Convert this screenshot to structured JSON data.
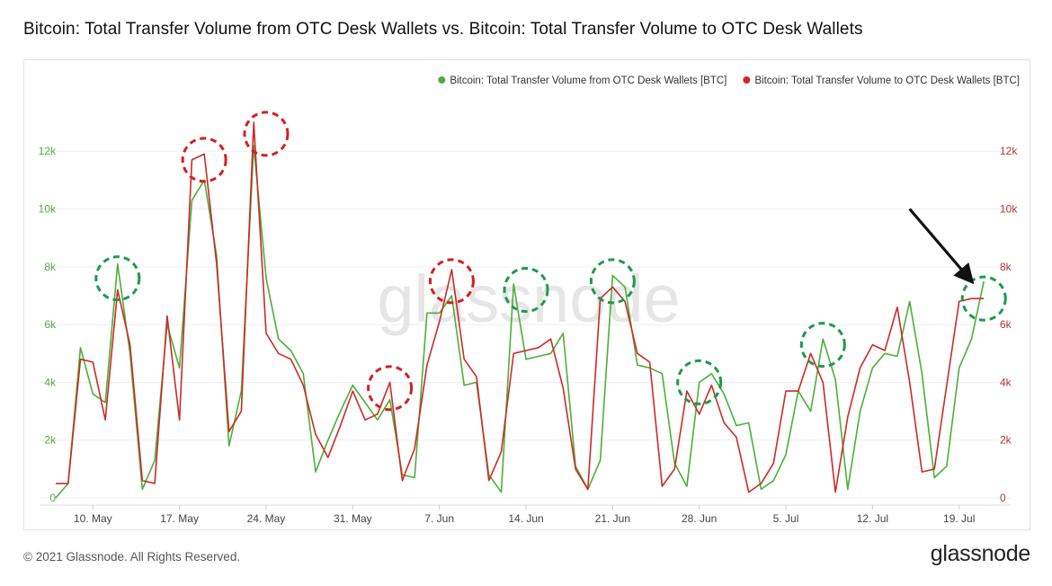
{
  "title": "Bitcoin: Total Transfer Volume from OTC Desk Wallets vs. Bitcoin: Total Transfer Volume to OTC Desk Wallets",
  "footer": {
    "copyright": "© 2021 Glassnode. All Rights Reserved.",
    "logo": "glassnode"
  },
  "watermark": "glassnode",
  "chart_data": {
    "type": "line",
    "xlabel": "",
    "ylabel_left": "",
    "ylabel_right": "",
    "x_range": [
      "2021-05-07",
      "2021-07-22"
    ],
    "ylim_left": [
      0,
      13500
    ],
    "ylim_right": [
      0,
      13500
    ],
    "x_tick_labels": [
      "10. May",
      "17. May",
      "24. May",
      "31. May",
      "7. Jun",
      "14. Jun",
      "21. Jun",
      "28. Jun",
      "5. Jul",
      "12. Jul",
      "19. Jul"
    ],
    "x_tick_dates": [
      "2021-05-10",
      "2021-05-17",
      "2021-05-24",
      "2021-05-31",
      "2021-06-07",
      "2021-06-14",
      "2021-06-21",
      "2021-06-28",
      "2021-07-05",
      "2021-07-12",
      "2021-07-19"
    ],
    "y_ticks_left": [
      "0",
      "2k",
      "4k",
      "6k",
      "8k",
      "10k",
      "12k"
    ],
    "y_ticks_right": [
      "0",
      "2k",
      "4k",
      "6k",
      "8k",
      "10k",
      "12k"
    ],
    "y_tick_values": [
      0,
      2000,
      4000,
      6000,
      8000,
      10000,
      12000
    ],
    "legend_position": "top-right",
    "grid": "horizontal",
    "series": [
      {
        "name": "Bitcoin: Total Transfer Volume from OTC Desk Wallets [BTC]",
        "color": "#4caf3a",
        "axis": "left",
        "x": [
          "2021-05-07",
          "2021-05-08",
          "2021-05-09",
          "2021-05-10",
          "2021-05-11",
          "2021-05-12",
          "2021-05-13",
          "2021-05-14",
          "2021-05-15",
          "2021-05-16",
          "2021-05-17",
          "2021-05-18",
          "2021-05-19",
          "2021-05-20",
          "2021-05-21",
          "2021-05-22",
          "2021-05-23",
          "2021-05-24",
          "2021-05-25",
          "2021-05-26",
          "2021-05-27",
          "2021-05-28",
          "2021-05-29",
          "2021-05-30",
          "2021-05-31",
          "2021-06-01",
          "2021-06-02",
          "2021-06-03",
          "2021-06-04",
          "2021-06-05",
          "2021-06-06",
          "2021-06-07",
          "2021-06-08",
          "2021-06-09",
          "2021-06-10",
          "2021-06-11",
          "2021-06-12",
          "2021-06-13",
          "2021-06-14",
          "2021-06-15",
          "2021-06-16",
          "2021-06-17",
          "2021-06-18",
          "2021-06-19",
          "2021-06-20",
          "2021-06-21",
          "2021-06-22",
          "2021-06-23",
          "2021-06-24",
          "2021-06-25",
          "2021-06-26",
          "2021-06-27",
          "2021-06-28",
          "2021-06-29",
          "2021-06-30",
          "2021-07-01",
          "2021-07-02",
          "2021-07-03",
          "2021-07-04",
          "2021-07-05",
          "2021-07-06",
          "2021-07-07",
          "2021-07-08",
          "2021-07-09",
          "2021-07-10",
          "2021-07-11",
          "2021-07-12",
          "2021-07-13",
          "2021-07-14",
          "2021-07-15",
          "2021-07-16",
          "2021-07-17",
          "2021-07-18",
          "2021-07-19",
          "2021-07-20",
          "2021-07-21"
        ],
        "values": [
          0,
          500,
          5200,
          3600,
          3300,
          8100,
          5000,
          300,
          1300,
          6000,
          4500,
          10300,
          11000,
          8400,
          1800,
          3700,
          12200,
          7600,
          5500,
          5100,
          4300,
          900,
          2000,
          3000,
          3900,
          3300,
          2700,
          3400,
          800,
          700,
          6400,
          6400,
          7000,
          3900,
          4000,
          800,
          200,
          7400,
          4800,
          4900,
          5000,
          5700,
          1100,
          300,
          1300,
          7700,
          7300,
          4600,
          4500,
          4300,
          1200,
          400,
          4000,
          4300,
          3600,
          2500,
          2600,
          300,
          600,
          1500,
          3700,
          3000,
          5500,
          4100,
          300,
          3000,
          4500,
          5000,
          4900,
          6800,
          4300,
          700,
          1100,
          4500,
          5500,
          7500
        ]
      },
      {
        "name": "Bitcoin: Total Transfer Volume to OTC Desk Wallets [BTC]",
        "color": "#cc2a28",
        "axis": "right",
        "x": [
          "2021-05-07",
          "2021-05-08",
          "2021-05-09",
          "2021-05-10",
          "2021-05-11",
          "2021-05-12",
          "2021-05-13",
          "2021-05-14",
          "2021-05-15",
          "2021-05-16",
          "2021-05-17",
          "2021-05-18",
          "2021-05-19",
          "2021-05-20",
          "2021-05-21",
          "2021-05-22",
          "2021-05-23",
          "2021-05-24",
          "2021-05-25",
          "2021-05-26",
          "2021-05-27",
          "2021-05-28",
          "2021-05-29",
          "2021-05-30",
          "2021-05-31",
          "2021-06-01",
          "2021-06-02",
          "2021-06-03",
          "2021-06-04",
          "2021-06-05",
          "2021-06-06",
          "2021-06-07",
          "2021-06-08",
          "2021-06-09",
          "2021-06-10",
          "2021-06-11",
          "2021-06-12",
          "2021-06-13",
          "2021-06-14",
          "2021-06-15",
          "2021-06-16",
          "2021-06-17",
          "2021-06-18",
          "2021-06-19",
          "2021-06-20",
          "2021-06-21",
          "2021-06-22",
          "2021-06-23",
          "2021-06-24",
          "2021-06-25",
          "2021-06-26",
          "2021-06-27",
          "2021-06-28",
          "2021-06-29",
          "2021-06-30",
          "2021-07-01",
          "2021-07-02",
          "2021-07-03",
          "2021-07-04",
          "2021-07-05",
          "2021-07-06",
          "2021-07-07",
          "2021-07-08",
          "2021-07-09",
          "2021-07-10",
          "2021-07-11",
          "2021-07-12",
          "2021-07-13",
          "2021-07-14",
          "2021-07-15",
          "2021-07-16",
          "2021-07-17",
          "2021-07-18",
          "2021-07-19",
          "2021-07-20",
          "2021-07-21"
        ],
        "values": [
          500,
          500,
          4800,
          4700,
          2700,
          7200,
          5300,
          600,
          500,
          6300,
          2700,
          11700,
          11900,
          8100,
          2300,
          3000,
          13000,
          5700,
          5000,
          4800,
          3900,
          2200,
          1400,
          2500,
          3700,
          2700,
          2900,
          4000,
          600,
          1700,
          4600,
          6100,
          7900,
          4800,
          4200,
          600,
          1600,
          5000,
          5100,
          5200,
          5500,
          3800,
          1000,
          300,
          6900,
          7300,
          6800,
          5000,
          4700,
          400,
          1000,
          3700,
          2900,
          3900,
          2600,
          2100,
          200,
          500,
          1200,
          3700,
          3700,
          5000,
          4000,
          200,
          2800,
          4500,
          5300,
          5100,
          6600,
          4000,
          900,
          1000,
          3900,
          6800,
          6900,
          6900
        ]
      }
    ],
    "annotations": [
      {
        "kind": "dashed-circle",
        "color": "#1e9a4c",
        "x": "2021-05-12",
        "y": 7600
      },
      {
        "kind": "dashed-circle",
        "color": "#d42020",
        "x": "2021-05-19",
        "y": 11700
      },
      {
        "kind": "dashed-circle",
        "color": "#d42020",
        "x": "2021-05-24",
        "y": 12600
      },
      {
        "kind": "dashed-circle",
        "color": "#d42020",
        "x": "2021-06-03",
        "y": 3800
      },
      {
        "kind": "dashed-circle",
        "color": "#d42020",
        "x": "2021-06-08",
        "y": 7500
      },
      {
        "kind": "dashed-circle",
        "color": "#1e9a4c",
        "x": "2021-06-14",
        "y": 7200
      },
      {
        "kind": "dashed-circle",
        "color": "#1e9a4c",
        "x": "2021-06-21",
        "y": 7500
      },
      {
        "kind": "dashed-circle",
        "color": "#1e9a4c",
        "x": "2021-06-28",
        "y": 4000
      },
      {
        "kind": "dashed-circle",
        "color": "#1e9a4c",
        "x": "2021-07-08",
        "y": 5300
      },
      {
        "kind": "dashed-circle",
        "color": "#1e9a4c",
        "x": "2021-07-21",
        "y": 6900
      },
      {
        "kind": "arrow",
        "color": "#111111",
        "x_from": "2021-07-15",
        "y_from": 10000,
        "x_to": "2021-07-20",
        "y_to": 7500
      }
    ]
  }
}
